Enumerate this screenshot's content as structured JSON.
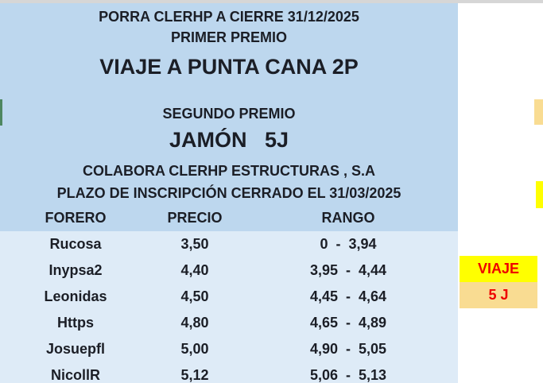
{
  "header": {
    "title": "PORRA CLERHP A CIERRE 31/12/2025",
    "first_prize_label": "PRIMER PREMIO",
    "first_prize": "VIAJE A PUNTA CANA 2P",
    "second_prize_label": "SEGUNDO PREMIO",
    "second_prize": "JAMÓN   5J",
    "sponsor": "COLABORA CLERHP ESTRUCTURAS , S.A",
    "deadline": "PLAZO DE INSCRIPCIÓN CERRADO EL 31/03/2025"
  },
  "table": {
    "columns": [
      "FORERO",
      "PRECIO",
      "RANGO"
    ],
    "rows": [
      {
        "forero": "Rucosa",
        "precio": "3,50",
        "rango": "0  -  3,94"
      },
      {
        "forero": "Inypsa2",
        "precio": "4,40",
        "rango": "3,95  -  4,44"
      },
      {
        "forero": "Leonidas",
        "precio": "4,50",
        "rango": "4,45  -  4,64"
      },
      {
        "forero": "Https",
        "precio": "4,80",
        "rango": "4,65  -  4,89"
      },
      {
        "forero": "Josuepfl",
        "precio": "5,00",
        "rango": "4,90  -  5,05"
      },
      {
        "forero": "NicollR",
        "precio": "5,12",
        "rango": "5,06  -  5,13"
      }
    ]
  },
  "prize_tags": {
    "first": "VIAJE",
    "second": "5 J"
  },
  "colors": {
    "panel_blue": "#BDD7EE",
    "body_blue": "#DEEBF7",
    "tag_yellow": "#FFFF00",
    "tag_tan": "#F9DC92",
    "tag_text_red": "#EE0000",
    "text_dark": "#1B1E26"
  }
}
